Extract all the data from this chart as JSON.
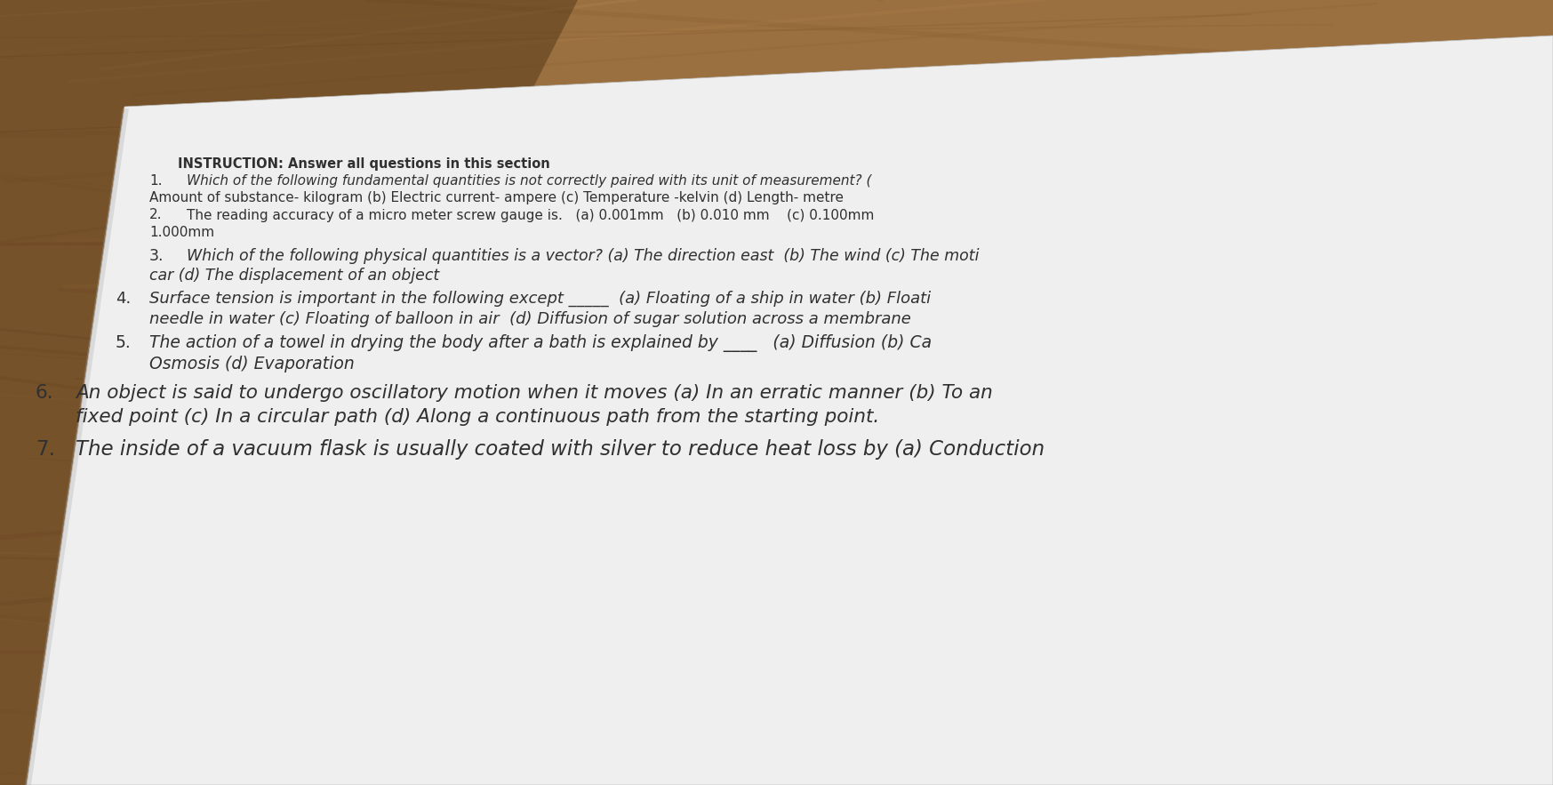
{
  "bg_wood_color": "#9B7040",
  "bg_wood_dark": "#7a5528",
  "paper_color": "#efefef",
  "paper_color2": "#e8e8e8",
  "text_color": "#303030",
  "text_color_light": "#505050",
  "title_text": "INSTRUCTION: Answer all questions in this section",
  "questions": [
    {
      "number": "1.",
      "fontsize": 11.0,
      "style": "mixed",
      "lines": [
        {
          "text": "Which of the following fundamental quantities is not correctly paired with its unit of measurement? (",
          "italic": true
        },
        {
          "text": "Amount of substance- kilogram (b) Electric current- ampere (c) Temperature -kelvin (d) Length- metre",
          "italic": false
        }
      ],
      "indent_continuation": true
    },
    {
      "number": "2.",
      "fontsize": 11.0,
      "style": "mixed",
      "lines": [
        {
          "text": "The reading accuracy of a micro meter screw gauge is.   (a) 0.001mm   (b) 0.010 mm    (c) 0.100mm",
          "italic": false
        },
        {
          "text": "1.000mm",
          "italic": false
        }
      ],
      "indent_continuation": true
    },
    {
      "number": "3.",
      "fontsize": 12.5,
      "style": "italic",
      "lines": [
        {
          "text": "Which of the following physical quantities is a vector? (a) The direction east  (b) The wind (c) The moti",
          "italic": true
        },
        {
          "text": "car (d) The displacement of an object",
          "italic": true
        }
      ],
      "indent_continuation": true
    },
    {
      "number": "4.",
      "fontsize": 13.0,
      "style": "italic",
      "lines": [
        {
          "text": "Surface tension is important in the following except _____  (a) Floating of a ship in water (b) Floati",
          "italic": true
        },
        {
          "text": "needle in water (c) Floating of balloon in air  (d) Diffusion of sugar solution across a membrane",
          "italic": true
        }
      ],
      "indent_continuation": false
    },
    {
      "number": "5.",
      "fontsize": 13.5,
      "style": "italic",
      "lines": [
        {
          "text": "The action of a towel in drying the body after a bath is explained by ____   (a) Diffusion (b) Ca",
          "italic": true
        },
        {
          "text": "Osmosis (d) Evaporation",
          "italic": true
        }
      ],
      "indent_continuation": false
    },
    {
      "number": "6.",
      "fontsize": 15.5,
      "style": "italic",
      "lines": [
        {
          "text": "An object is said to undergo oscillatory motion when it moves (a) In an erratic manner (b) To an",
          "italic": true
        },
        {
          "text": "fixed point (c) In a circular path (d) Along a continuous path from the starting point.",
          "italic": true
        }
      ],
      "indent_continuation": false
    },
    {
      "number": "7.",
      "fontsize": 16.5,
      "style": "italic",
      "lines": [
        {
          "text": "The inside of a vacuum flask is usually coated with silver to reduce heat loss by (a) Conduction",
          "italic": true
        }
      ],
      "indent_continuation": false
    }
  ]
}
